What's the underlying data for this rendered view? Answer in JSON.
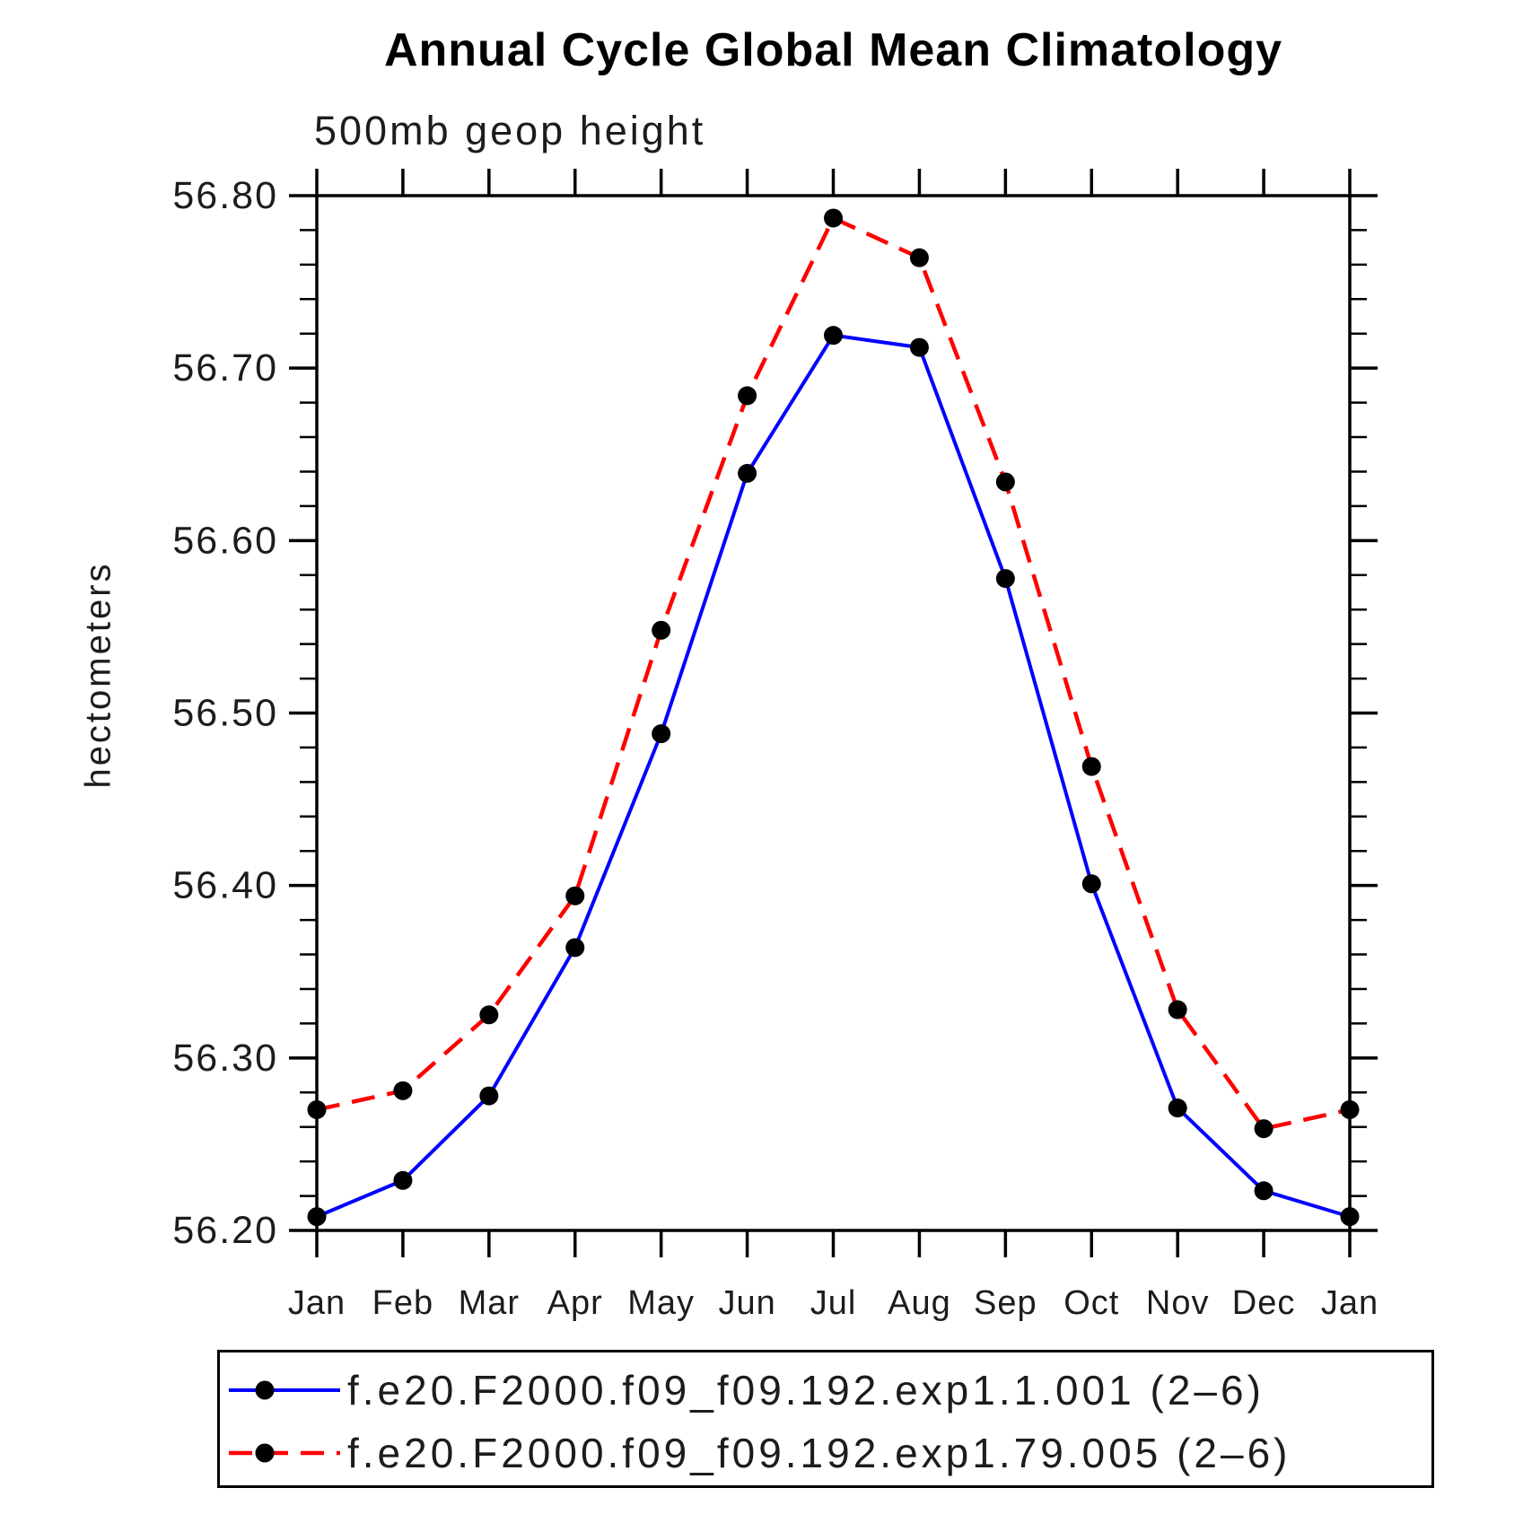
{
  "chart_data": {
    "type": "line",
    "title": "Annual Cycle Global Mean Climatology",
    "subtitle": "500mb geop height",
    "ylabel": "hectometers",
    "xlabel": "",
    "categories": [
      "Jan",
      "Feb",
      "Mar",
      "Apr",
      "May",
      "Jun",
      "Jul",
      "Aug",
      "Sep",
      "Oct",
      "Nov",
      "Dec",
      "Jan"
    ],
    "ylim": [
      56.2,
      56.8
    ],
    "ytick_step": 0.1,
    "yminor_step": 0.02,
    "grid": false,
    "legend_position": "bottom",
    "marker": {
      "shape": "circle",
      "color": "#000000"
    },
    "series": [
      {
        "name": "f.e20.F2000.f09_f09.192.exp1.1.001 (2–6)",
        "color": "#0000ff",
        "line_style": "solid",
        "values": [
          56.208,
          56.229,
          56.278,
          56.364,
          56.488,
          56.639,
          56.719,
          56.712,
          56.578,
          56.401,
          56.271,
          56.223,
          56.208
        ]
      },
      {
        "name": "f.e20.F2000.f09_f09.192.exp1.79.005 (2–6)",
        "color": "#ff0000",
        "line_style": "dashed",
        "values": [
          56.27,
          56.281,
          56.325,
          56.394,
          56.548,
          56.684,
          56.787,
          56.764,
          56.634,
          56.469,
          56.328,
          56.259,
          56.27
        ]
      }
    ]
  }
}
